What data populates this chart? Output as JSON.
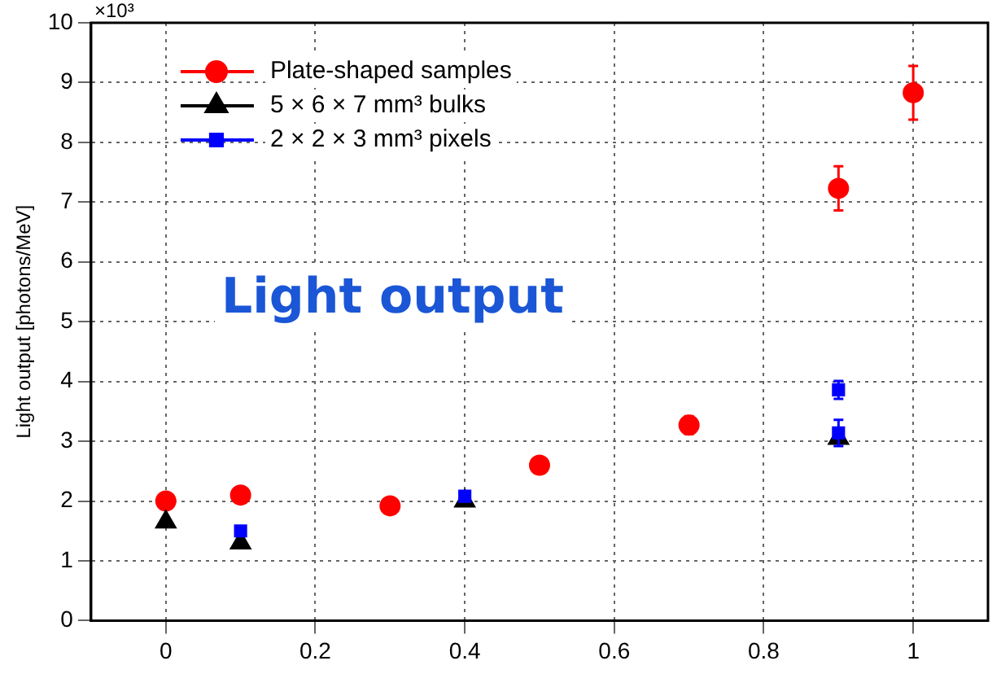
{
  "chart_data": {
    "type": "scatter",
    "ylabel": "Light output [photons/MeV]",
    "annotations": [
      "×10³",
      "Light output"
    ],
    "xlim": [
      -0.1,
      1.1
    ],
    "xticks": [
      0,
      0.2,
      0.4,
      0.6,
      0.8,
      1
    ],
    "ylim": [
      0,
      10
    ],
    "yticks": [
      0,
      1,
      2,
      3,
      4,
      5,
      6,
      7,
      8,
      9,
      10
    ],
    "grid": true,
    "legend": "top left",
    "series": [
      {
        "name": "Plate-shaped samples",
        "color": "#ff0000",
        "marker": "circle",
        "x": [
          0,
          0.1,
          0.3,
          0.5,
          0.7,
          0.9,
          1
        ],
        "values": [
          2.0,
          2.1,
          1.92,
          2.6,
          3.27,
          7.23,
          8.83
        ],
        "errors": [
          null,
          null,
          null,
          null,
          0.15,
          0.37,
          0.45
        ]
      },
      {
        "name": "5 × 6 × 7 mm³ bulks",
        "color": "#000000",
        "marker": "triangle",
        "x": [
          0,
          0.1,
          0.4,
          0.9
        ],
        "values": [
          1.65,
          1.3,
          2.0,
          3.05
        ]
      },
      {
        "name": "2 × 2 × 3 mm³ pixels",
        "color": "#0000ff",
        "marker": "square",
        "x": [
          0.1,
          0.4,
          0.9,
          0.9
        ],
        "values": [
          1.5,
          2.08,
          3.86,
          3.14
        ],
        "errors": [
          null,
          null,
          0.15,
          0.22
        ]
      }
    ]
  }
}
